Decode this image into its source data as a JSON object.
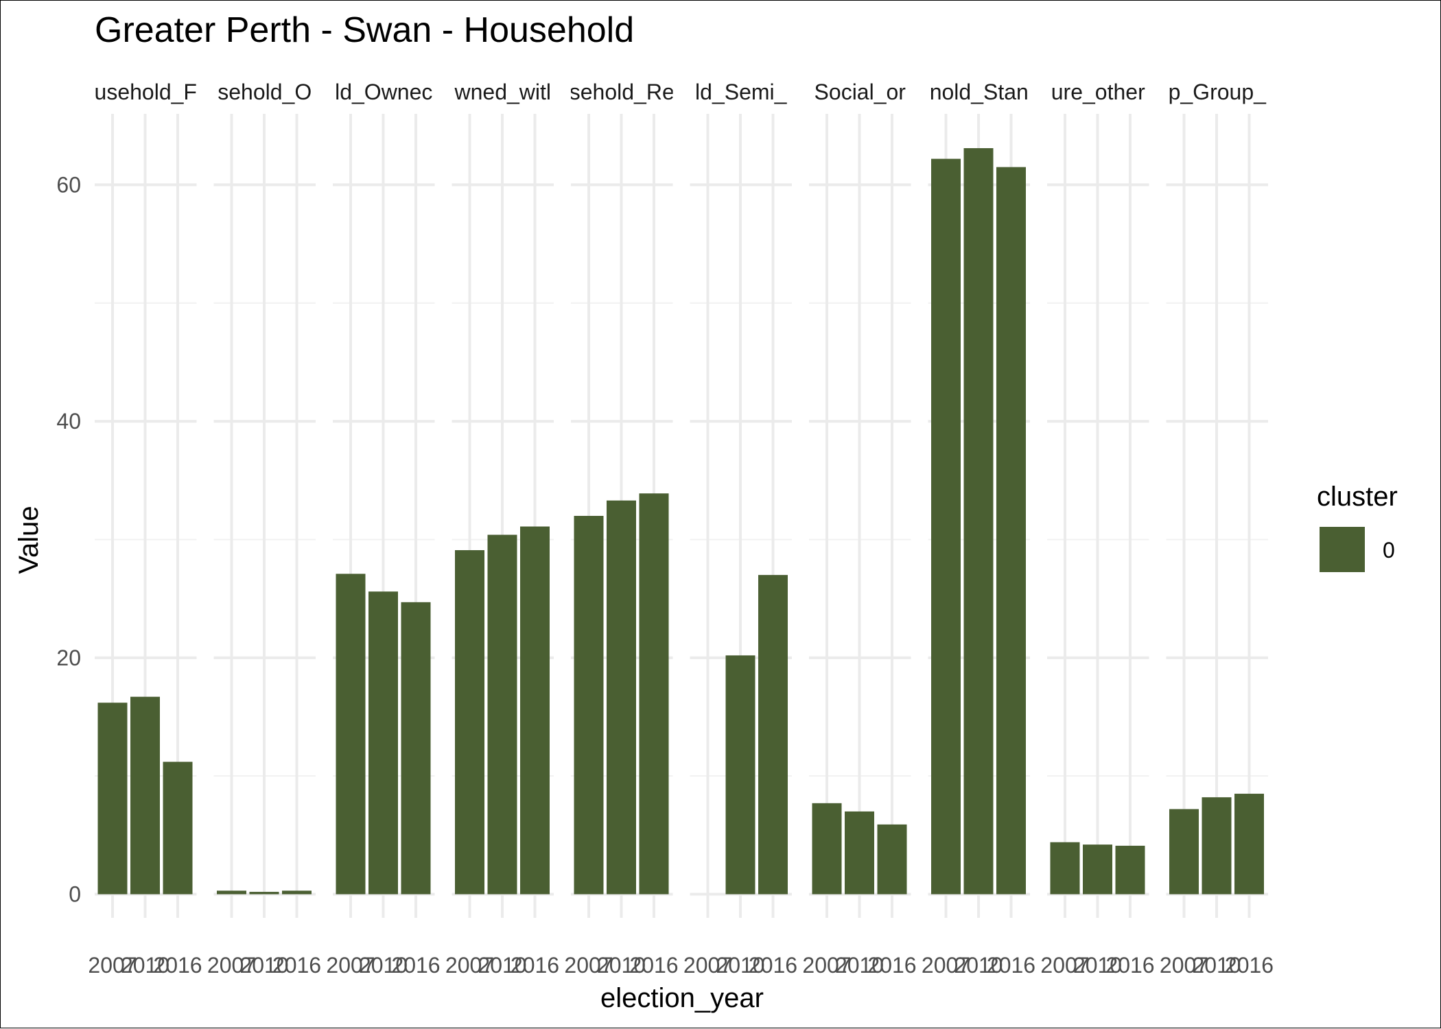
{
  "chart_data": {
    "type": "bar",
    "title": "Greater Perth - Swan - Household",
    "xlabel": "election_year",
    "ylabel": "Value",
    "ylim": [
      -2.0,
      66.0
    ],
    "yticks": [
      0,
      20,
      40,
      60
    ],
    "grid": true,
    "years": [
      "2007",
      "2010",
      "2016"
    ],
    "facets": [
      {
        "label": "usehold_F",
        "values": [
          16.2,
          16.7,
          11.2
        ]
      },
      {
        "label": "sehold_O",
        "values": [
          0.3,
          0.2,
          0.3
        ]
      },
      {
        "label": "ld_Ownec",
        "values": [
          27.1,
          25.6,
          24.7
        ]
      },
      {
        "label": "wned_witl",
        "values": [
          29.1,
          30.4,
          31.1
        ]
      },
      {
        "label": "sehold_Re",
        "values": [
          32.0,
          33.3,
          33.9
        ]
      },
      {
        "label": "ld_Semi_",
        "values": [
          null,
          20.2,
          27.0
        ]
      },
      {
        "label": "Social_or",
        "values": [
          7.7,
          7.0,
          5.9
        ]
      },
      {
        "label": "nold_Stan",
        "values": [
          62.2,
          63.1,
          61.5
        ]
      },
      {
        "label": "ure_other",
        "values": [
          4.4,
          4.2,
          4.1
        ]
      },
      {
        "label": "p_Group_",
        "values": [
          7.2,
          8.2,
          8.5
        ]
      }
    ],
    "legend": {
      "title": "cluster",
      "position": "right",
      "items": [
        {
          "label": "0",
          "color": "#4a5f32"
        }
      ]
    },
    "bar_color": "#4a5f32"
  }
}
